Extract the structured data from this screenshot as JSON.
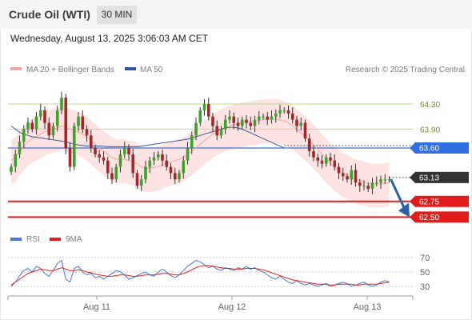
{
  "header": {
    "title": "Crude Oil (WTI)",
    "interval": "30 MIN"
  },
  "datetime": "Wednesday, August 13, 2025 3:06:03 AM CET",
  "legend": {
    "ma20": {
      "label": "MA 20 + Bollinger Bands",
      "color": "#f4a6a0"
    },
    "ma50": {
      "label": "MA 50",
      "color": "#2c5aa0"
    }
  },
  "copyright": "Research © 2025 Trading Central",
  "chart_data": {
    "type": "candlestick",
    "x_ticks": [
      "Aug 11",
      "Aug 12",
      "Aug 13"
    ],
    "ylim": [
      62.35,
      64.55
    ],
    "grid": false,
    "resistance_levels": [
      {
        "value": 64.3,
        "label": "64.30"
      },
      {
        "value": 63.9,
        "label": "63.90"
      }
    ],
    "ma50_level": {
      "value": 63.6,
      "label": "63.60"
    },
    "last_price": {
      "value": 63.13,
      "label": "63.13"
    },
    "support_levels": [
      {
        "value": 62.75,
        "label": "62.75"
      },
      {
        "value": 62.5,
        "label": "62.50"
      }
    ],
    "closes": [
      63.3,
      63.5,
      63.7,
      63.9,
      64.0,
      63.9,
      64.1,
      64.2,
      64.0,
      63.8,
      63.95,
      64.2,
      64.4,
      63.6,
      63.3,
      63.95,
      64.1,
      63.9,
      63.8,
      63.6,
      63.5,
      63.45,
      63.4,
      63.2,
      63.1,
      63.3,
      63.5,
      63.6,
      63.5,
      63.2,
      63.0,
      63.1,
      63.3,
      63.4,
      63.45,
      63.5,
      63.4,
      63.3,
      63.2,
      63.1,
      63.2,
      63.4,
      63.6,
      63.8,
      64.0,
      64.2,
      64.3,
      64.1,
      63.95,
      63.8,
      63.9,
      64.05,
      64.1,
      64.0,
      63.95,
      64.05,
      64.0,
      63.95,
      64.05,
      64.1,
      64.1,
      64.05,
      64.1,
      64.15,
      64.2,
      64.2,
      64.15,
      64.05,
      63.95,
      64.0,
      63.75,
      63.55,
      63.45,
      63.4,
      63.35,
      63.45,
      63.4,
      63.3,
      63.2,
      63.15,
      63.1,
      63.25,
      63.05,
      63.0,
      63.0,
      62.95,
      63.05,
      63.05,
      63.1,
      63.1,
      63.1
    ],
    "ma20": [
      63.4,
      63.45,
      63.55,
      63.62,
      63.7,
      63.75,
      63.78,
      63.82,
      63.86,
      63.88,
      63.9,
      63.92,
      63.95,
      63.93,
      63.9,
      63.88,
      63.85,
      63.82,
      63.78,
      63.72,
      63.66,
      63.6,
      63.55,
      63.5,
      63.45,
      63.42,
      63.42,
      63.42,
      63.4,
      63.38,
      63.35,
      63.3,
      63.28,
      63.28,
      63.29,
      63.3,
      63.33,
      63.36,
      63.38,
      63.4,
      63.42,
      63.45,
      63.5,
      63.55,
      63.6,
      63.66,
      63.72,
      63.77,
      63.82,
      63.86,
      63.9,
      63.93,
      63.95,
      63.97,
      63.98,
      64.0,
      64.01,
      64.02,
      64.03,
      64.04,
      64.05,
      64.06,
      64.06,
      64.06,
      64.05,
      64.03,
      64.0,
      63.96,
      63.9,
      63.84,
      63.78,
      63.72,
      63.65,
      63.58,
      63.5,
      63.43,
      63.36,
      63.3,
      63.25,
      63.2,
      63.16,
      63.13,
      63.1,
      63.08,
      63.06,
      63.04,
      63.03,
      63.03,
      63.03,
      63.04,
      63.05
    ],
    "ma50": [
      63.95,
      63.9,
      63.85,
      63.82,
      63.8,
      63.78,
      63.77,
      63.76,
      63.75,
      63.74,
      63.73,
      63.72,
      63.71,
      63.7,
      63.68,
      63.66,
      63.65,
      63.64,
      63.63,
      63.63,
      63.63,
      63.63,
      63.63,
      63.62,
      63.62,
      63.62,
      63.62,
      63.62,
      63.62,
      63.62,
      63.62,
      63.63,
      63.64,
      63.65,
      63.66,
      63.67,
      63.68,
      63.69,
      63.7,
      63.71,
      63.72,
      63.73,
      63.74,
      63.76,
      63.78,
      63.8,
      63.82,
      63.84,
      63.86,
      63.88,
      63.9,
      63.92,
      63.93,
      63.93,
      63.92,
      63.9,
      63.87,
      63.84,
      63.81,
      63.78,
      63.75,
      63.72,
      63.69,
      63.66,
      63.63,
      63.6
    ],
    "bb_upper_offset": 0.32,
    "bb_lower_offset": 0.38,
    "forecast_arrow": {
      "from": 63.13,
      "to": 62.55
    }
  },
  "rsi": {
    "legend": {
      "rsi": {
        "label": "RSI",
        "color": "#4a78d6"
      },
      "ma9": {
        "label": "9MA",
        "color": "#e02020"
      }
    },
    "ylim": [
      20,
      80
    ],
    "ticks": [
      "70",
      "50",
      "30"
    ],
    "tick_values": [
      70,
      50,
      30
    ],
    "values": [
      30,
      36,
      45,
      52,
      55,
      50,
      58,
      55,
      48,
      44,
      52,
      62,
      66,
      40,
      36,
      55,
      58,
      50,
      46,
      48,
      42,
      44,
      40,
      44,
      48,
      52,
      50,
      46,
      40,
      42,
      45,
      48,
      50,
      46,
      44,
      50,
      54,
      50,
      45,
      42,
      46,
      52,
      58,
      62,
      66,
      64,
      60,
      56,
      58,
      54,
      52,
      56,
      54,
      52,
      56,
      54,
      58,
      54,
      56,
      52,
      50,
      46,
      42,
      40,
      44,
      40,
      36,
      34,
      38,
      34,
      32,
      34,
      32,
      30,
      32,
      34,
      30,
      32,
      34,
      36,
      34,
      30,
      32,
      34,
      36,
      32,
      30,
      32,
      36,
      38,
      36
    ],
    "ma9": [
      32,
      36,
      40,
      44,
      48,
      50,
      52,
      54,
      53,
      52,
      52,
      54,
      56,
      54,
      52,
      52,
      53,
      52,
      50,
      49,
      47,
      46,
      45,
      44,
      44,
      45,
      46,
      46,
      45,
      44,
      44,
      45,
      46,
      46,
      46,
      47,
      48,
      48,
      47,
      46,
      46,
      48,
      50,
      53,
      56,
      58,
      59,
      59,
      58,
      57,
      56,
      55,
      55,
      54,
      54,
      54,
      55,
      55,
      55,
      54,
      53,
      51,
      49,
      47,
      45,
      43,
      41,
      39,
      38,
      37,
      36,
      35,
      34,
      33,
      33,
      33,
      32,
      32,
      33,
      33,
      33,
      33,
      32,
      32,
      33,
      33,
      33,
      33,
      34,
      35,
      36
    ]
  }
}
